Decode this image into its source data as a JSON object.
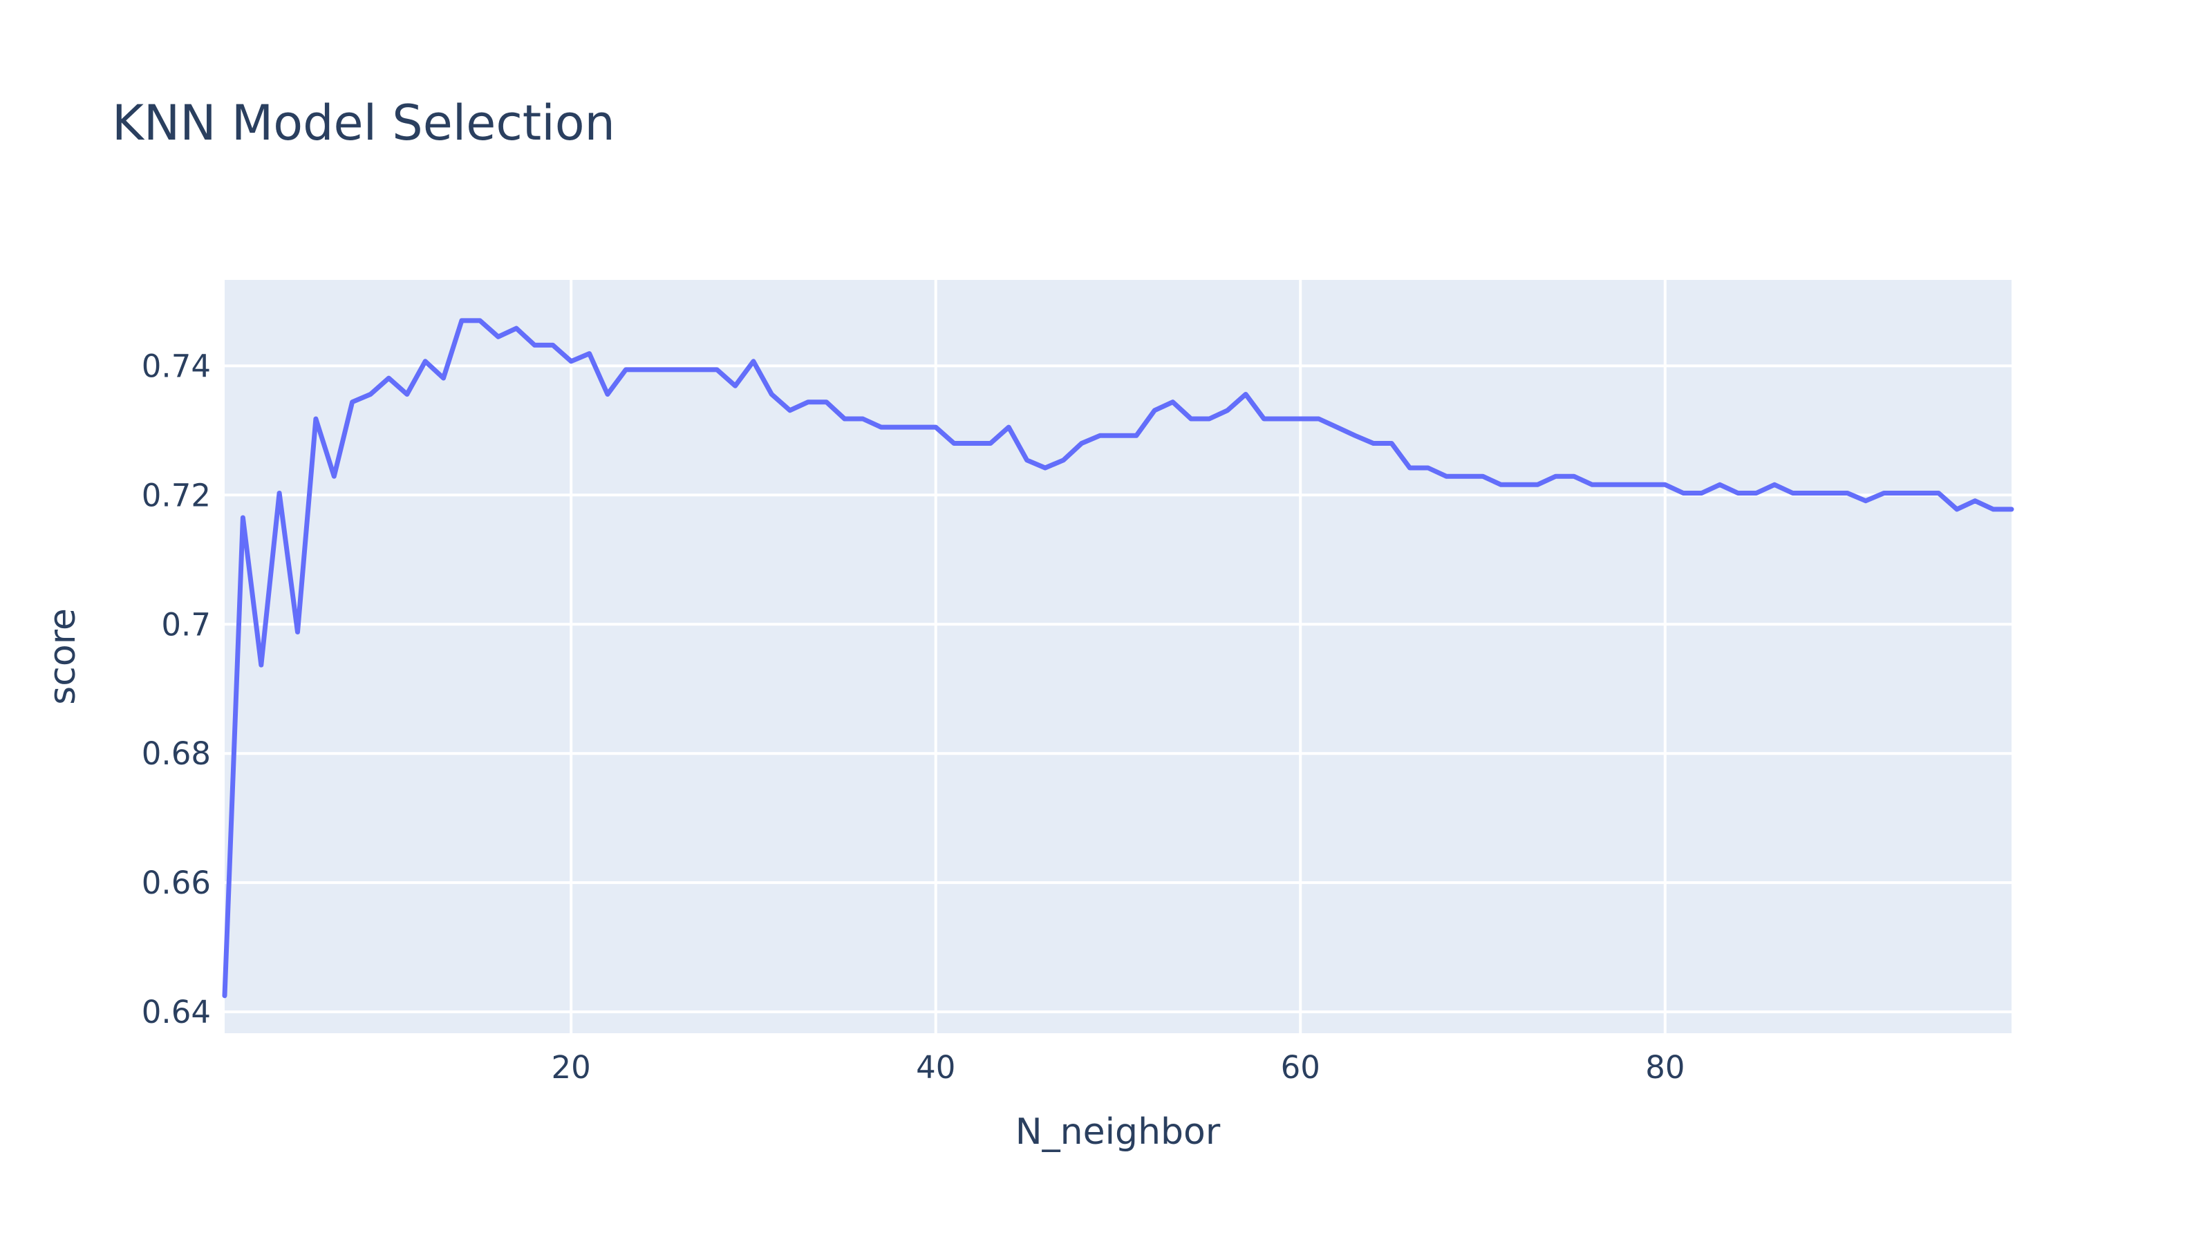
{
  "chart_data": {
    "type": "line",
    "title": "KNN Model Selection",
    "xlabel": "N_neighbor",
    "ylabel": "score",
    "xlim": [
      1,
      99
    ],
    "ylim": [
      0.6367,
      0.7533
    ],
    "x_ticks": [
      20,
      40,
      60,
      80
    ],
    "x_tick_labels": [
      "20",
      "40",
      "60",
      "80"
    ],
    "y_ticks": [
      0.64,
      0.66,
      0.68,
      0.7,
      0.72,
      0.74
    ],
    "y_tick_labels": [
      "0.64",
      "0.66",
      "0.68",
      "0.7",
      "0.72",
      "0.74"
    ],
    "grid": true,
    "legend": "none",
    "plot_background": "#e5ecf6",
    "series": [
      {
        "color": "#636efa",
        "x": [
          1,
          2,
          3,
          4,
          5,
          6,
          7,
          8,
          9,
          10,
          11,
          12,
          13,
          14,
          15,
          16,
          17,
          18,
          19,
          20,
          21,
          22,
          23,
          24,
          25,
          26,
          27,
          28,
          29,
          30,
          31,
          32,
          33,
          34,
          35,
          36,
          37,
          38,
          39,
          40,
          41,
          42,
          43,
          44,
          45,
          46,
          47,
          48,
          49,
          50,
          51,
          52,
          53,
          54,
          55,
          56,
          57,
          58,
          59,
          60,
          61,
          62,
          63,
          64,
          65,
          66,
          67,
          68,
          69,
          70,
          71,
          72,
          73,
          74,
          75,
          76,
          77,
          78,
          79,
          80,
          81,
          82,
          83,
          84,
          85,
          86,
          87,
          88,
          89,
          90,
          91,
          92,
          93,
          94,
          95,
          96,
          97,
          98,
          99
        ],
        "y": [
          0.6425,
          0.7165,
          0.6937,
          0.7203,
          0.6988,
          0.7318,
          0.7229,
          0.7344,
          0.7356,
          0.7381,
          0.7356,
          0.7407,
          0.7381,
          0.747,
          0.747,
          0.7445,
          0.7458,
          0.7432,
          0.7432,
          0.7407,
          0.7419,
          0.7356,
          0.7394,
          0.7394,
          0.7394,
          0.7394,
          0.7394,
          0.7394,
          0.7369,
          0.7407,
          0.7356,
          0.7331,
          0.7344,
          0.7344,
          0.7318,
          0.7318,
          0.7305,
          0.7305,
          0.7305,
          0.7305,
          0.728,
          0.728,
          0.728,
          0.7305,
          0.7254,
          0.7242,
          0.7254,
          0.728,
          0.7292,
          0.7292,
          0.7292,
          0.7331,
          0.7344,
          0.7318,
          0.7318,
          0.7331,
          0.7356,
          0.7318,
          0.7318,
          0.7318,
          0.7318,
          0.7305,
          0.7292,
          0.728,
          0.728,
          0.7242,
          0.7242,
          0.7229,
          0.7229,
          0.7229,
          0.7216,
          0.7216,
          0.7216,
          0.7229,
          0.7229,
          0.7216,
          0.7216,
          0.7216,
          0.7216,
          0.7216,
          0.7203,
          0.7203,
          0.7216,
          0.7203,
          0.7203,
          0.7216,
          0.7203,
          0.7203,
          0.7203,
          0.7203,
          0.7191,
          0.7203,
          0.7203,
          0.7203,
          0.7203,
          0.7178,
          0.7191,
          0.7178,
          0.7178
        ]
      }
    ]
  }
}
